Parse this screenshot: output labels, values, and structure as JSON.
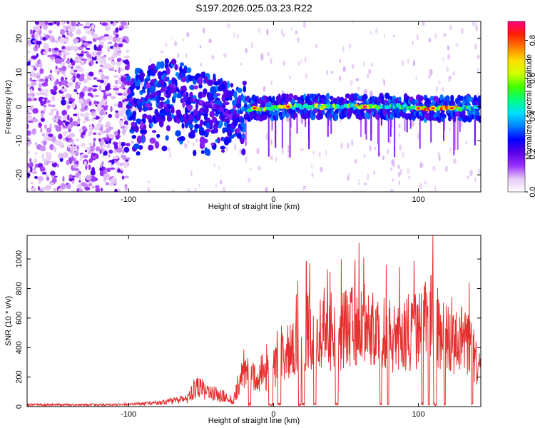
{
  "title": "S197.2026.025.03.23.R22",
  "chart_data": [
    {
      "type": "heatmap",
      "name": "spectrogram",
      "xlabel": "Height of straight line (km)",
      "ylabel": "Frequency (Hz)",
      "xlim": [
        -170,
        143
      ],
      "ylim": [
        -25,
        25
      ],
      "xticks": [
        -100,
        0,
        100
      ],
      "xtick_labels": [
        "-100",
        "0",
        "100"
      ],
      "yticks": [
        -20,
        -10,
        0,
        10,
        20
      ],
      "ytick_labels": [
        "-20",
        "-10",
        "0",
        "10",
        "20"
      ],
      "colorbar": {
        "label": "Normalized spectral amplitude",
        "range": [
          0.0,
          0.9
        ],
        "ticks": [
          0.0,
          0.2,
          0.4,
          0.6,
          0.8
        ],
        "tick_labels": [
          "0.0",
          "0.2",
          "0.4",
          "0.6",
          "0.8"
        ],
        "colormap": [
          "#ffffff",
          "#e6c8f5",
          "#9b30ff",
          "#5a00e6",
          "#0000ff",
          "#0080ff",
          "#00e0ff",
          "#00ff80",
          "#40ff00",
          "#d0ff00",
          "#ffe000",
          "#ff8000",
          "#ff2000",
          "#ff0080"
        ]
      },
      "ridge": [
        {
          "x": -100,
          "freq": 0.5,
          "amp": 0.35
        },
        {
          "x": -90,
          "freq": 2.0,
          "amp": 0.3
        },
        {
          "x": -80,
          "freq": 4.0,
          "amp": 0.3
        },
        {
          "x": -70,
          "freq": 6.0,
          "amp": 0.28
        },
        {
          "x": -60,
          "freq": 2.5,
          "amp": 0.28
        },
        {
          "x": -50,
          "freq": 1.0,
          "amp": 0.25
        },
        {
          "x": -40,
          "freq": 0.0,
          "amp": 0.2
        },
        {
          "x": -30,
          "freq": -1.5,
          "amp": 0.3
        },
        {
          "x": -20,
          "freq": -1.0,
          "amp": 0.4
        },
        {
          "x": -13,
          "freq": -0.5,
          "amp": 0.85
        },
        {
          "x": 0,
          "freq": -0.5,
          "amp": 0.5
        },
        {
          "x": 10,
          "freq": 0.0,
          "amp": 0.85
        },
        {
          "x": 20,
          "freq": 0.0,
          "amp": 0.5
        },
        {
          "x": 35,
          "freq": 0.0,
          "amp": 0.7
        },
        {
          "x": 50,
          "freq": 0.0,
          "amp": 0.5
        },
        {
          "x": 63,
          "freq": 0.0,
          "amp": 0.9
        },
        {
          "x": 75,
          "freq": 0.0,
          "amp": 0.5
        },
        {
          "x": 90,
          "freq": 0.0,
          "amp": 0.5
        },
        {
          "x": 100,
          "freq": -0.5,
          "amp": 0.85
        },
        {
          "x": 110,
          "freq": -0.5,
          "amp": 0.85
        },
        {
          "x": 123,
          "freq": -0.5,
          "amp": 0.85
        },
        {
          "x": 135,
          "freq": -0.5,
          "amp": 0.5
        },
        {
          "x": 143,
          "freq": -0.5,
          "amp": 0.45
        }
      ]
    },
    {
      "type": "line",
      "name": "snr",
      "xlabel": "Height of straight line (km)",
      "ylabel": "SNR (10 * v/v)",
      "xlim": [
        -170,
        143
      ],
      "ylim": [
        0,
        1160
      ],
      "xticks": [
        -100,
        0,
        100
      ],
      "xtick_labels": [
        "-100",
        "0",
        "100"
      ],
      "yticks": [
        0,
        200,
        400,
        600,
        800,
        1000
      ],
      "ytick_labels": [
        "0",
        "200",
        "400",
        "600",
        "800",
        "1000"
      ],
      "color": "#e53030",
      "envelope": [
        {
          "x": -170,
          "y": 20
        },
        {
          "x": -110,
          "y": 20
        },
        {
          "x": -90,
          "y": 30
        },
        {
          "x": -75,
          "y": 50
        },
        {
          "x": -60,
          "y": 80
        },
        {
          "x": -52,
          "y": 250
        },
        {
          "x": -45,
          "y": 150
        },
        {
          "x": -35,
          "y": 120
        },
        {
          "x": -28,
          "y": 60
        },
        {
          "x": -20,
          "y": 430
        },
        {
          "x": -10,
          "y": 350
        },
        {
          "x": 0,
          "y": 500
        },
        {
          "x": 10,
          "y": 700
        },
        {
          "x": 25,
          "y": 1000
        },
        {
          "x": 40,
          "y": 850
        },
        {
          "x": 55,
          "y": 1100
        },
        {
          "x": 70,
          "y": 950
        },
        {
          "x": 85,
          "y": 900
        },
        {
          "x": 100,
          "y": 1000
        },
        {
          "x": 110,
          "y": 1160
        },
        {
          "x": 120,
          "y": 850
        },
        {
          "x": 135,
          "y": 850
        },
        {
          "x": 143,
          "y": 400
        }
      ],
      "peaks": [
        {
          "x": 25,
          "y": 970
        },
        {
          "x": 59,
          "y": 1110
        },
        {
          "x": 110,
          "y": 1160
        },
        {
          "x": 135,
          "y": 840
        }
      ]
    }
  ]
}
